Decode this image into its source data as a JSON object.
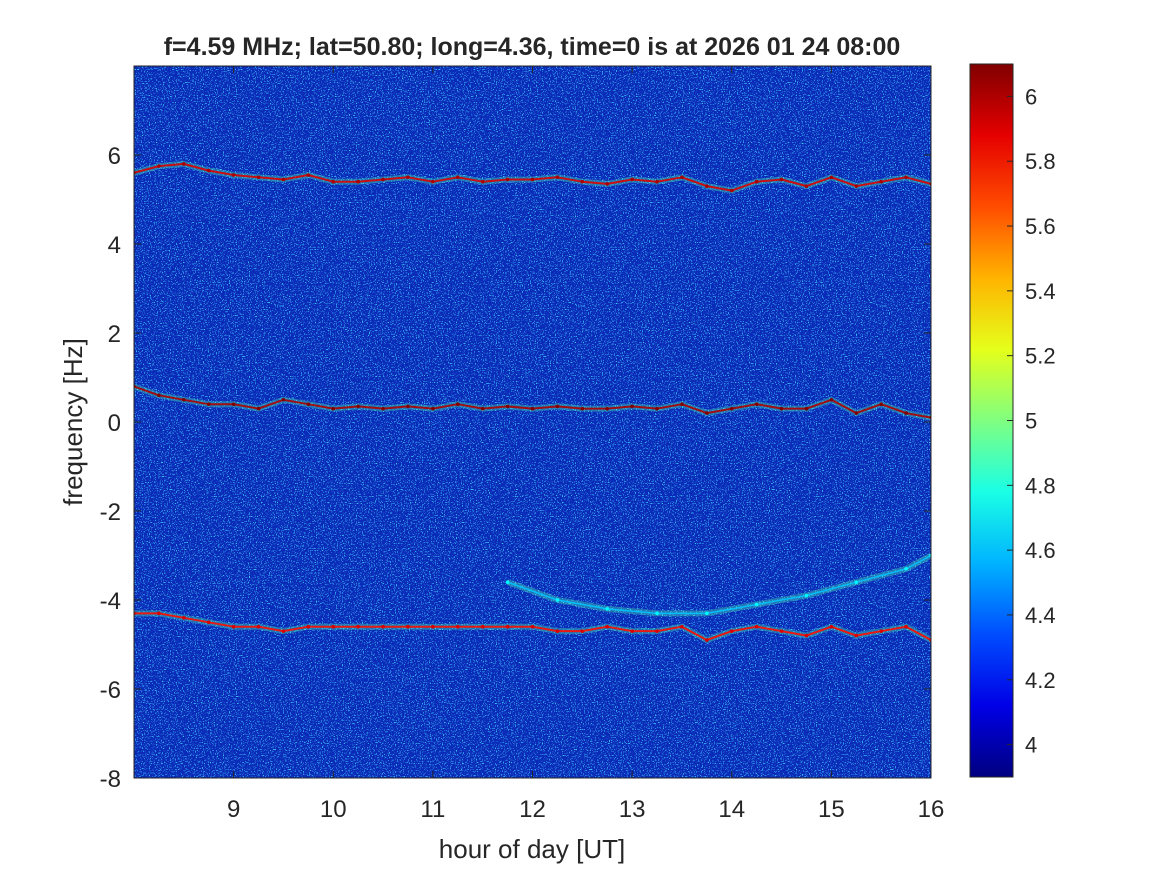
{
  "chart_data": {
    "type": "heatmap",
    "title": "f=4.59 MHz;  lat=50.80; long=4.36, time=0 is at 2026 01 24 08:00",
    "xlabel": "hour of day [UT]",
    "ylabel": "frequency [Hz]",
    "xlim": [
      8,
      16
    ],
    "ylim": [
      -8,
      8
    ],
    "x_ticks": [
      9,
      10,
      11,
      12,
      13,
      14,
      15,
      16
    ],
    "y_ticks": [
      -8,
      -6,
      -4,
      -2,
      0,
      2,
      4,
      6
    ],
    "colorbar": {
      "colormap": "jet",
      "clim": [
        3.9,
        6.1
      ],
      "ticks": [
        4,
        4.2,
        4.4,
        4.6,
        4.8,
        5,
        5.2,
        5.4,
        5.6,
        5.8,
        6
      ],
      "tick_labels": [
        "4",
        "4.2",
        "4.4",
        "4.6",
        "4.8",
        "5",
        "5.2",
        "5.4",
        "5.6",
        "5.8",
        "6"
      ]
    },
    "background_level": 4.05,
    "traces": [
      {
        "hours": [
          8.0,
          8.25,
          8.5,
          8.75,
          9.0,
          9.25,
          9.5,
          9.75,
          10.0,
          10.25,
          10.5,
          10.75,
          11.0,
          11.25,
          11.5,
          11.75,
          12.0,
          12.25,
          12.5,
          12.75,
          13.0,
          13.25,
          13.5,
          13.75,
          14.0,
          14.25,
          14.5,
          14.75,
          15.0,
          15.25,
          15.5,
          15.75,
          16.0
        ],
        "freq_hz": [
          5.6,
          5.75,
          5.8,
          5.65,
          5.55,
          5.5,
          5.45,
          5.55,
          5.4,
          5.4,
          5.45,
          5.5,
          5.4,
          5.5,
          5.4,
          5.45,
          5.45,
          5.5,
          5.4,
          5.35,
          5.45,
          5.4,
          5.5,
          5.3,
          5.2,
          5.4,
          5.45,
          5.3,
          5.5,
          5.3,
          5.4,
          5.5,
          5.35
        ],
        "peak_level": 5.9
      },
      {
        "hours": [
          8.0,
          8.25,
          8.5,
          8.75,
          9.0,
          9.25,
          9.5,
          9.75,
          10.0,
          10.25,
          10.5,
          10.75,
          11.0,
          11.25,
          11.5,
          11.75,
          12.0,
          12.25,
          12.5,
          12.75,
          13.0,
          13.25,
          13.5,
          13.75,
          14.0,
          14.25,
          14.5,
          14.75,
          15.0,
          15.25,
          15.5,
          15.75,
          16.0
        ],
        "freq_hz": [
          0.8,
          0.6,
          0.5,
          0.4,
          0.4,
          0.3,
          0.5,
          0.4,
          0.3,
          0.35,
          0.3,
          0.35,
          0.3,
          0.4,
          0.3,
          0.35,
          0.3,
          0.35,
          0.3,
          0.3,
          0.35,
          0.3,
          0.4,
          0.2,
          0.3,
          0.4,
          0.3,
          0.3,
          0.5,
          0.2,
          0.4,
          0.2,
          0.1
        ],
        "peak_level": 6.0
      },
      {
        "hours": [
          8.0,
          8.25,
          8.5,
          8.75,
          9.0,
          9.25,
          9.5,
          9.75,
          10.0,
          10.25,
          10.5,
          10.75,
          11.0,
          11.25,
          11.5,
          11.75,
          12.0,
          12.25,
          12.5,
          12.75,
          13.0,
          13.25,
          13.5,
          13.75,
          14.0,
          14.25,
          14.5,
          14.75,
          15.0,
          15.25,
          15.5,
          15.75,
          16.0
        ],
        "freq_hz": [
          -4.3,
          -4.3,
          -4.4,
          -4.5,
          -4.6,
          -4.6,
          -4.7,
          -4.6,
          -4.6,
          -4.6,
          -4.6,
          -4.6,
          -4.6,
          -4.6,
          -4.6,
          -4.6,
          -4.6,
          -4.7,
          -4.7,
          -4.6,
          -4.7,
          -4.7,
          -4.6,
          -4.9,
          -4.7,
          -4.6,
          -4.7,
          -4.8,
          -4.6,
          -4.8,
          -4.7,
          -4.6,
          -4.9
        ],
        "peak_level": 5.8
      },
      {
        "hours": [
          11.75,
          12.25,
          12.75,
          13.25,
          13.75,
          14.25,
          14.75,
          15.25,
          15.75,
          16.0
        ],
        "freq_hz": [
          -3.6,
          -4.0,
          -4.2,
          -4.3,
          -4.3,
          -4.1,
          -3.9,
          -3.6,
          -3.3,
          -3.0
        ],
        "peak_level": 4.6
      }
    ]
  }
}
